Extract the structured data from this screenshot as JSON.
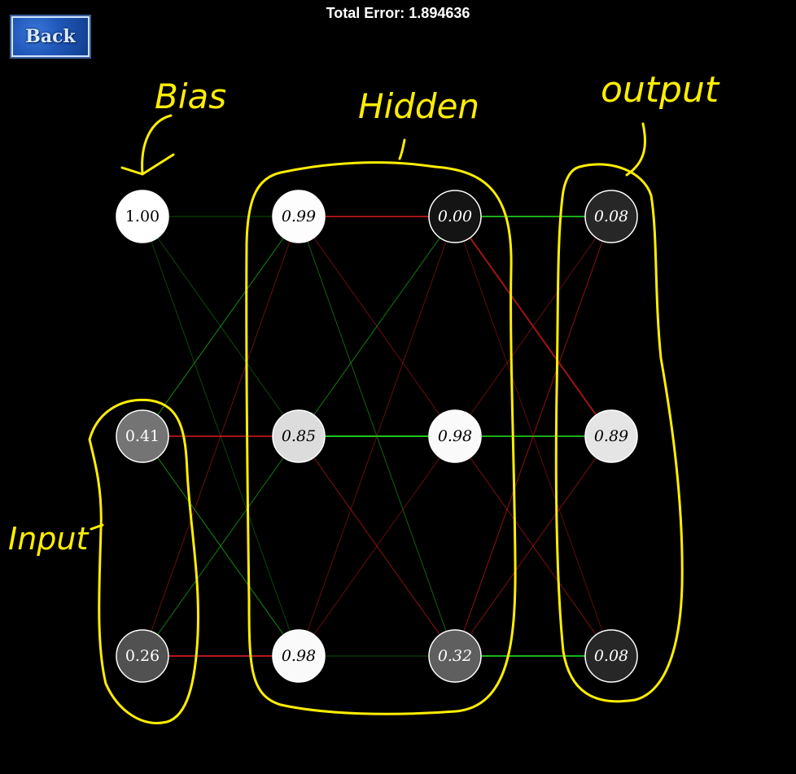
{
  "header": {
    "title": "Total Error: 1.894636",
    "back_label": "Back"
  },
  "annotations": {
    "bias": "Bias",
    "hidden": "Hidden",
    "output": "output",
    "input": "Input"
  },
  "colors": {
    "positive": "#1fd51f",
    "negative": "#d81b1b",
    "annotation": "#ffee00"
  },
  "network": {
    "columns": [
      {
        "role": "input",
        "nodes": [
          "1.00",
          "0.41",
          "0.26"
        ],
        "levels": [
          1.0,
          0.41,
          0.26
        ]
      },
      {
        "role": "hidden",
        "nodes": [
          "0.99",
          "0.85",
          "0.98"
        ],
        "levels": [
          0.99,
          0.85,
          0.98
        ]
      },
      {
        "role": "hidden",
        "nodes": [
          "0.00",
          "0.98",
          "0.32"
        ],
        "levels": [
          0.0,
          0.98,
          0.32
        ]
      },
      {
        "role": "output",
        "nodes": [
          "0.08",
          "0.89",
          "0.08"
        ],
        "levels": [
          0.08,
          0.89,
          0.08
        ]
      }
    ],
    "connections": [
      {
        "from": [
          0,
          0
        ],
        "to": [
          1,
          0
        ],
        "sign": "+",
        "strength": 0.15
      },
      {
        "from": [
          0,
          0
        ],
        "to": [
          1,
          1
        ],
        "sign": "+",
        "strength": 0.15
      },
      {
        "from": [
          0,
          0
        ],
        "to": [
          1,
          2
        ],
        "sign": "+",
        "strength": 0.1
      },
      {
        "from": [
          0,
          1
        ],
        "to": [
          1,
          0
        ],
        "sign": "+",
        "strength": 0.55
      },
      {
        "from": [
          0,
          1
        ],
        "to": [
          1,
          1
        ],
        "sign": "-",
        "strength": 0.7
      },
      {
        "from": [
          0,
          1
        ],
        "to": [
          1,
          2
        ],
        "sign": "+",
        "strength": 0.55
      },
      {
        "from": [
          0,
          2
        ],
        "to": [
          1,
          0
        ],
        "sign": "-",
        "strength": 0.35
      },
      {
        "from": [
          0,
          2
        ],
        "to": [
          1,
          1
        ],
        "sign": "+",
        "strength": 0.45
      },
      {
        "from": [
          0,
          2
        ],
        "to": [
          1,
          2
        ],
        "sign": "-",
        "strength": 0.8
      },
      {
        "from": [
          1,
          0
        ],
        "to": [
          2,
          0
        ],
        "sign": "-",
        "strength": 0.7
      },
      {
        "from": [
          1,
          0
        ],
        "to": [
          2,
          1
        ],
        "sign": "-",
        "strength": 0.35
      },
      {
        "from": [
          1,
          0
        ],
        "to": [
          2,
          2
        ],
        "sign": "+",
        "strength": 0.3
      },
      {
        "from": [
          1,
          1
        ],
        "to": [
          2,
          0
        ],
        "sign": "+",
        "strength": 0.45
      },
      {
        "from": [
          1,
          1
        ],
        "to": [
          2,
          1
        ],
        "sign": "+",
        "strength": 0.9
      },
      {
        "from": [
          1,
          1
        ],
        "to": [
          2,
          2
        ],
        "sign": "-",
        "strength": 0.55
      },
      {
        "from": [
          1,
          2
        ],
        "to": [
          2,
          0
        ],
        "sign": "-",
        "strength": 0.3
      },
      {
        "from": [
          1,
          2
        ],
        "to": [
          2,
          1
        ],
        "sign": "-",
        "strength": 0.3
      },
      {
        "from": [
          1,
          2
        ],
        "to": [
          2,
          2
        ],
        "sign": "+",
        "strength": 0.15
      },
      {
        "from": [
          2,
          0
        ],
        "to": [
          3,
          0
        ],
        "sign": "+",
        "strength": 0.75
      },
      {
        "from": [
          2,
          0
        ],
        "to": [
          3,
          1
        ],
        "sign": "-",
        "strength": 0.65
      },
      {
        "from": [
          2,
          0
        ],
        "to": [
          3,
          2
        ],
        "sign": "-",
        "strength": 0.25
      },
      {
        "from": [
          2,
          1
        ],
        "to": [
          3,
          0
        ],
        "sign": "-",
        "strength": 0.3
      },
      {
        "from": [
          2,
          1
        ],
        "to": [
          3,
          1
        ],
        "sign": "+",
        "strength": 0.75
      },
      {
        "from": [
          2,
          1
        ],
        "to": [
          3,
          2
        ],
        "sign": "-",
        "strength": 0.45
      },
      {
        "from": [
          2,
          2
        ],
        "to": [
          3,
          0
        ],
        "sign": "-",
        "strength": 0.55
      },
      {
        "from": [
          2,
          2
        ],
        "to": [
          3,
          1
        ],
        "sign": "-",
        "strength": 0.45
      },
      {
        "from": [
          2,
          2
        ],
        "to": [
          3,
          2
        ],
        "sign": "+",
        "strength": 0.8
      }
    ]
  }
}
